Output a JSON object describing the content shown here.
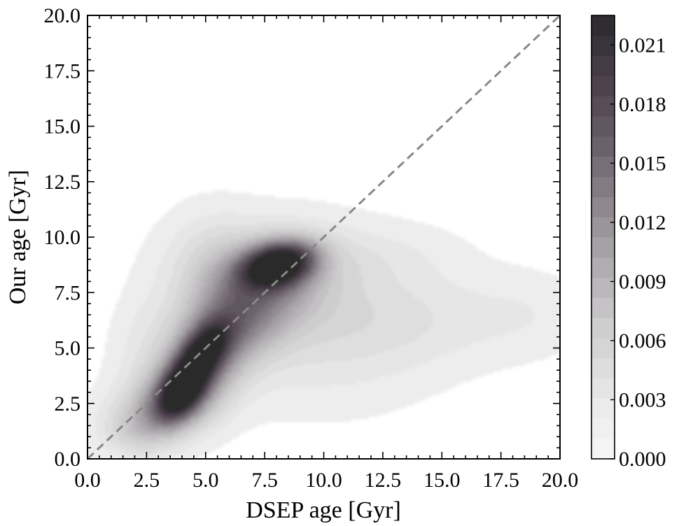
{
  "chart_data": {
    "type": "heatmap",
    "subtype": "2D kernel density estimate (filled contours)",
    "xlabel": "DSEP age [Gyr]",
    "ylabel": "Our age [Gyr]",
    "xlim": [
      0.0,
      20.0
    ],
    "ylim": [
      0.0,
      20.0
    ],
    "x_ticks": [
      "0.0",
      "2.5",
      "5.0",
      "7.5",
      "10.0",
      "12.5",
      "15.0",
      "17.5",
      "20.0"
    ],
    "y_ticks": [
      "0.0",
      "2.5",
      "5.0",
      "7.5",
      "10.0",
      "12.5",
      "15.0",
      "17.5",
      "20.0"
    ],
    "grid": false,
    "reference_line": {
      "style": "dashed",
      "color": "#888888",
      "from": [
        0.0,
        0.0
      ],
      "to": [
        20.0,
        20.0
      ]
    },
    "density_peaks": [
      {
        "x": 8.1,
        "y": 8.8,
        "density": 0.021
      },
      {
        "x": 4.0,
        "y": 3.2,
        "density": 0.021
      },
      {
        "x": 4.9,
        "y": 4.8,
        "density": 0.019
      }
    ],
    "colorbar": {
      "vmin": 0.0,
      "vmax": 0.0225,
      "ticks": [
        "0.000",
        "0.003",
        "0.006",
        "0.009",
        "0.012",
        "0.015",
        "0.018",
        "0.021"
      ],
      "colormap": "Greys with purple tint",
      "low_color": "#f5f5f5",
      "high_color": "#2a2a2c"
    }
  }
}
